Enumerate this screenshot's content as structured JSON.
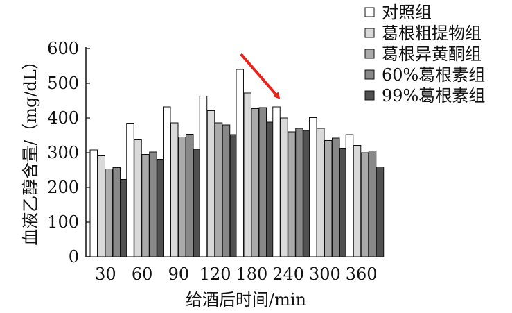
{
  "chart_data": {
    "type": "bar",
    "title": "",
    "xlabel": "给酒后时间/min",
    "ylabel": "血液乙醇含量/（mg/dL）",
    "ylim": [
      0,
      600
    ],
    "yticks": [
      0,
      100,
      200,
      300,
      400,
      500,
      600
    ],
    "categories": [
      "30",
      "60",
      "90",
      "120",
      "180",
      "240",
      "300",
      "360"
    ],
    "grid": false,
    "legend_position": "top-right",
    "series": [
      {
        "name": "对照组",
        "color": "#ffffff",
        "values": [
          308,
          385,
          432,
          463,
          540,
          432,
          401,
          352
        ]
      },
      {
        "name": "葛根粗提物组",
        "color": "#d9d9d9",
        "values": [
          291,
          337,
          386,
          421,
          472,
          400,
          370,
          321
        ]
      },
      {
        "name": "葛根异黄酮组",
        "color": "#aaaaaa",
        "values": [
          253,
          295,
          345,
          386,
          427,
          360,
          335,
          300
        ]
      },
      {
        "name": "60%葛根素组",
        "color": "#888888",
        "values": [
          257,
          302,
          353,
          380,
          430,
          370,
          342,
          305
        ]
      },
      {
        "name": "99%葛根素组",
        "color": "#505050",
        "values": [
          223,
          281,
          310,
          352,
          388,
          364,
          313,
          259
        ]
      }
    ],
    "annotation": {
      "type": "arrow",
      "color": "#e8211b",
      "points_to_category": "180"
    }
  }
}
